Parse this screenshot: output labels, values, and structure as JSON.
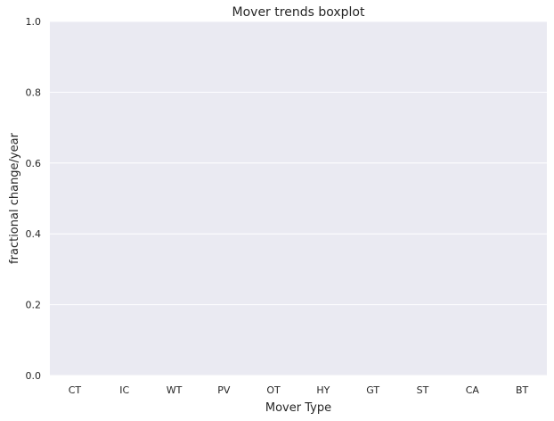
{
  "chart_data": {
    "type": "box",
    "title": "Mover trends boxplot",
    "xlabel": "Mover Type",
    "ylabel": "fractional change/year",
    "categories": [
      "CT",
      "IC",
      "WT",
      "PV",
      "OT",
      "HY",
      "GT",
      "ST",
      "CA",
      "BT"
    ],
    "ylim": [
      0,
      1
    ],
    "yticks": [
      "0.0",
      "0.2",
      "0.4",
      "0.6",
      "0.8",
      "1.0"
    ],
    "grid": true,
    "background_color": "#eaeaf2",
    "grid_color": "#ffffff",
    "series": []
  }
}
